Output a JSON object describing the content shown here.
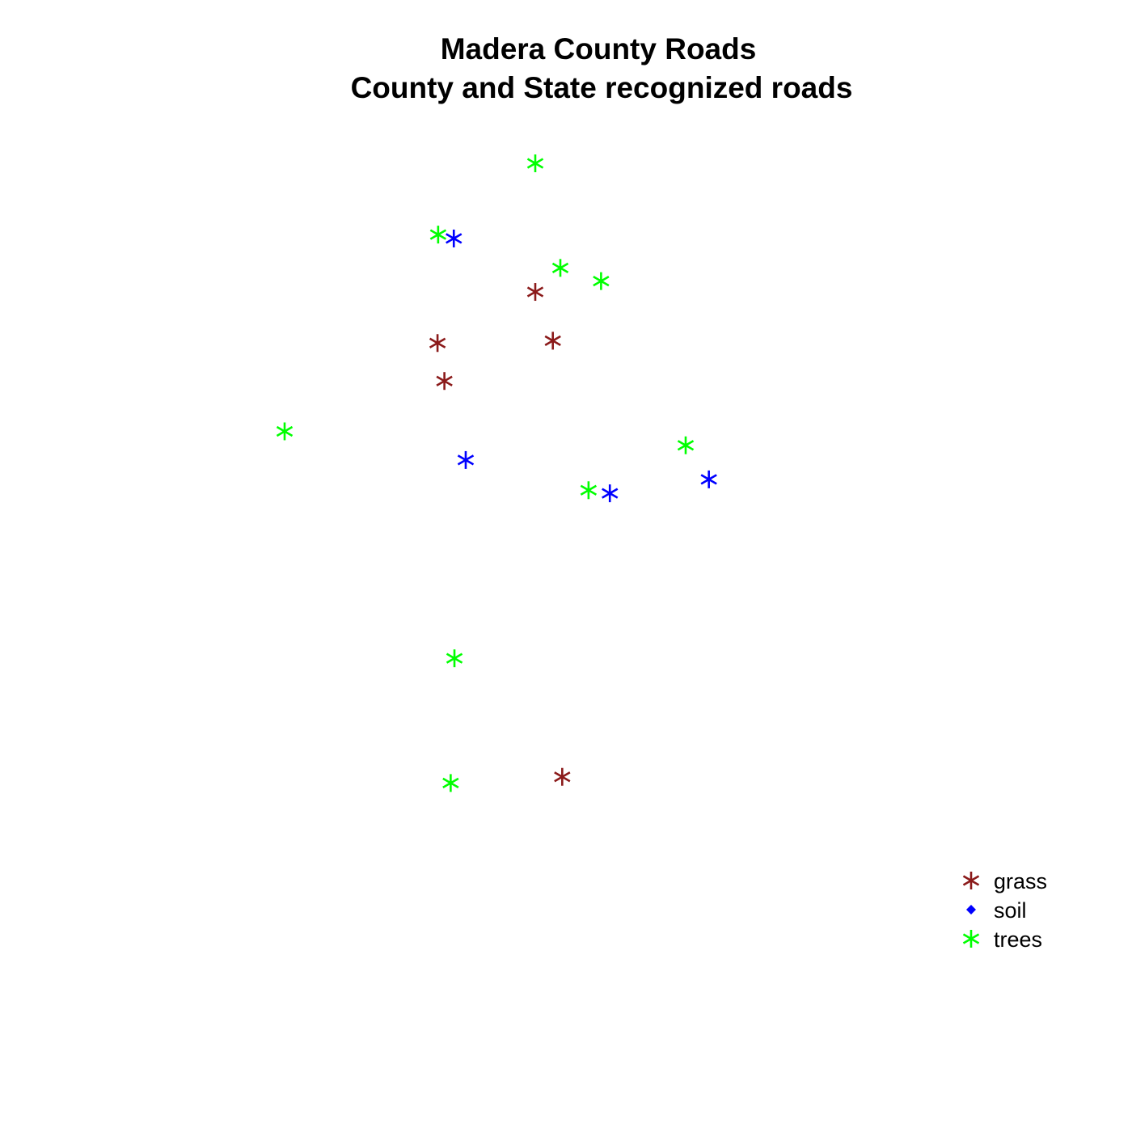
{
  "chart_data": {
    "type": "scatter",
    "title": "Madera County Roads",
    "subtitle": "County and State recognized roads",
    "xlabel": "",
    "ylabel": "",
    "axes_visible": false,
    "grid": false,
    "xlim": [
      0,
      1
    ],
    "ylim": [
      0,
      1
    ],
    "legend_position": "bottom-right",
    "series": [
      {
        "name": "grass",
        "color": "#8b1a1a",
        "marker": "asterisk",
        "points": [
          {
            "x": 0.4,
            "y": 0.834
          },
          {
            "x": 0.428,
            "y": 0.771
          },
          {
            "x": 0.244,
            "y": 0.768
          },
          {
            "x": 0.255,
            "y": 0.719
          },
          {
            "x": 0.443,
            "y": 0.208
          }
        ]
      },
      {
        "name": "soil",
        "color": "#0000ff",
        "marker": "asterisk",
        "legend_marker": "diamond",
        "points": [
          {
            "x": 0.27,
            "y": 0.903
          },
          {
            "x": 0.289,
            "y": 0.617
          },
          {
            "x": 0.519,
            "y": 0.574
          },
          {
            "x": 0.677,
            "y": 0.592
          }
        ]
      },
      {
        "name": "trees",
        "color": "#00ff00",
        "marker": "asterisk",
        "points": [
          {
            "x": 0.4,
            "y": 1.0
          },
          {
            "x": 0.245,
            "y": 0.908
          },
          {
            "x": 0.44,
            "y": 0.865
          },
          {
            "x": 0.505,
            "y": 0.848
          },
          {
            "x": 0.0,
            "y": 0.654
          },
          {
            "x": 0.64,
            "y": 0.636
          },
          {
            "x": 0.485,
            "y": 0.578
          },
          {
            "x": 0.271,
            "y": 0.361
          },
          {
            "x": 0.265,
            "y": 0.2
          }
        ]
      }
    ]
  }
}
